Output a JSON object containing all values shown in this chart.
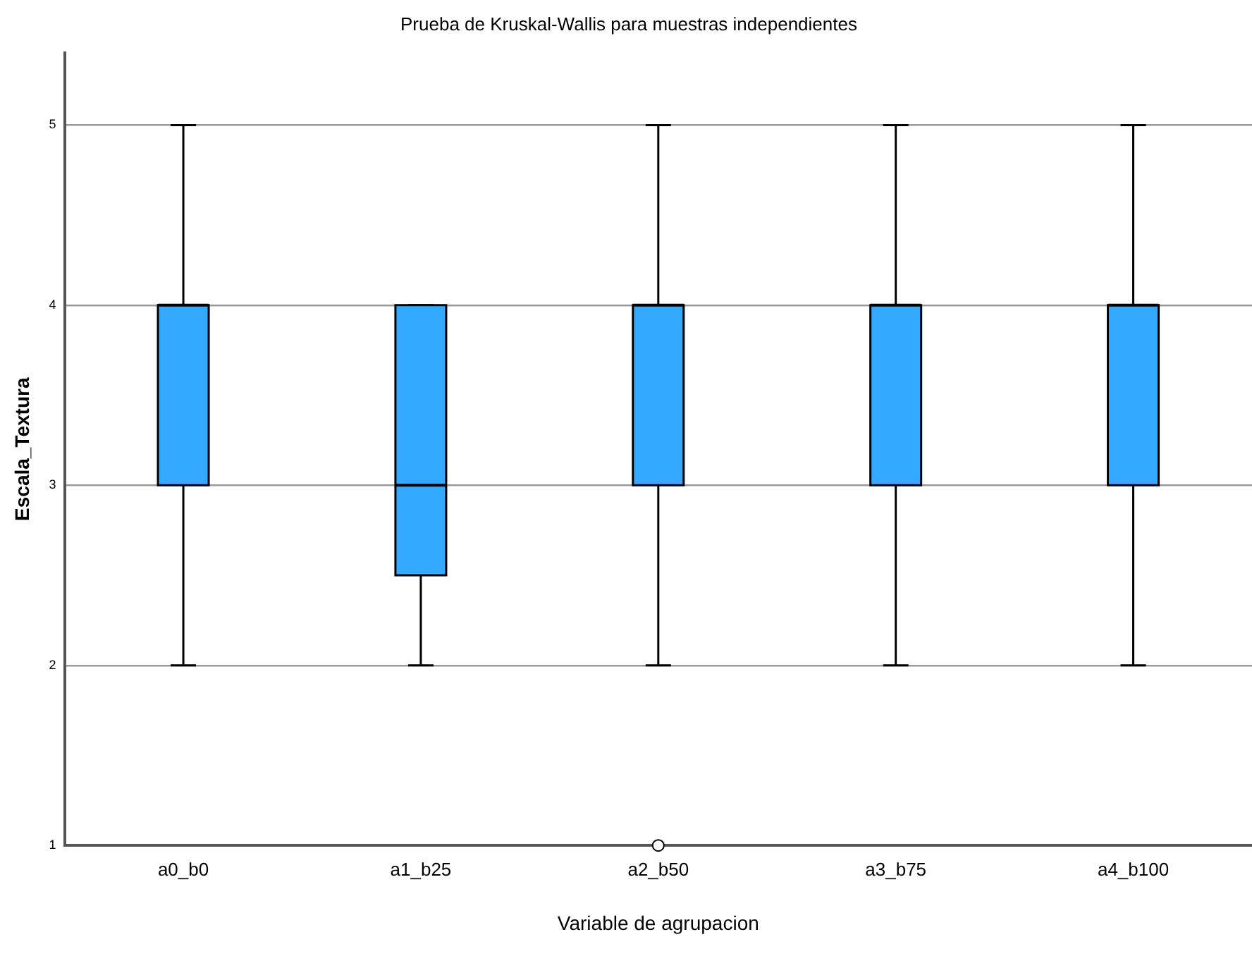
{
  "chart_data": {
    "type": "box",
    "title": "Prueba de Kruskal-Wallis para muestras independientes",
    "xlabel": "Variable de agrupacion",
    "ylabel": "Escala_Textura",
    "categories": [
      "a0_b0",
      "a1_b25",
      "a2_b50",
      "a3_b75",
      "a4_b100"
    ],
    "color": "#33aaff",
    "boxes": [
      {
        "low": 2,
        "q1": 3,
        "median": 4,
        "q3": 4,
        "high": 5
      },
      {
        "low": 2,
        "q1": 2.5,
        "median": 3,
        "q3": 4,
        "high": 4
      },
      {
        "low": 2,
        "q1": 3,
        "median": 4,
        "q3": 4,
        "high": 5,
        "outliers": [
          1
        ]
      },
      {
        "low": 2,
        "q1": 3,
        "median": 4,
        "q3": 4,
        "high": 5
      },
      {
        "low": 2,
        "q1": 3,
        "median": 4,
        "q3": 4,
        "high": 5
      }
    ],
    "ylim": [
      1,
      5.4
    ],
    "yticks": [
      1,
      2,
      3,
      4,
      5
    ],
    "grid": "y"
  }
}
